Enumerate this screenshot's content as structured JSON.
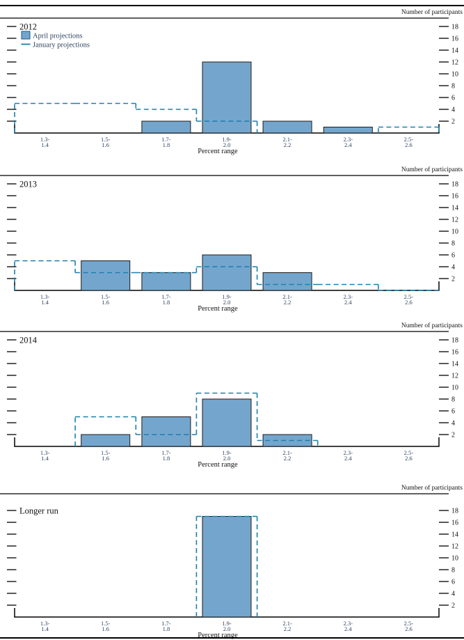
{
  "page": {
    "y_axis_title": "Number of participants",
    "x_axis_title": "Percent range"
  },
  "legend": {
    "april_label": "April projections",
    "january_label": "January projections"
  },
  "colors": {
    "bar_fill": "#74a6cd",
    "bar_stroke": "#1a1a1a",
    "dashed_line": "#1b7fad",
    "axis": "#000000",
    "tick_text": "#111111",
    "category_text": "#2e4160",
    "legend_text": "#2e4160",
    "year_text": "#111111"
  },
  "chart_data": {
    "type": "bar",
    "subtype": "histogram-with-dashed-step-overlay",
    "categories_display": [
      [
        "1.3-",
        "1.4"
      ],
      [
        "1.5-",
        "1.6"
      ],
      [
        "1.7-",
        "1.8"
      ],
      [
        "1.9-",
        "2.0"
      ],
      [
        "2.1-",
        "2.2"
      ],
      [
        "2.3-",
        "2.4"
      ],
      [
        "2.5-",
        "2.6"
      ]
    ],
    "xlabel": "Percent range",
    "ylabel": "Number of participants",
    "ylim": [
      0,
      19.4
    ],
    "yticks": [
      2,
      4,
      6,
      8,
      10,
      12,
      14,
      16,
      18
    ],
    "legend_position": "top-left-first-panel-only",
    "panels": [
      {
        "label": "2012",
        "series": [
          {
            "name": "April projections",
            "style": "bar",
            "values": [
              0,
              0,
              2,
              12,
              2,
              1,
              0
            ]
          },
          {
            "name": "January projections",
            "style": "dashed-step",
            "values": [
              5,
              5,
              4,
              2,
              0,
              0,
              1
            ],
            "zero_segments_drawn": []
          }
        ]
      },
      {
        "label": "2013",
        "series": [
          {
            "name": "April projections",
            "style": "bar",
            "values": [
              0,
              5,
              3,
              6,
              3,
              0,
              0
            ]
          },
          {
            "name": "January projections",
            "style": "dashed-step",
            "values": [
              5,
              3,
              3,
              4,
              1,
              1,
              0
            ],
            "zero_segments_drawn": [
              6
            ]
          }
        ]
      },
      {
        "label": "2014",
        "series": [
          {
            "name": "April projections",
            "style": "bar",
            "values": [
              0,
              2,
              5,
              8,
              2,
              0,
              0
            ]
          },
          {
            "name": "January projections",
            "style": "dashed-step",
            "values": [
              0,
              5,
              2,
              9,
              1,
              0,
              0
            ],
            "zero_segments_drawn": []
          }
        ]
      },
      {
        "label": "Longer run",
        "series": [
          {
            "name": "April projections",
            "style": "bar",
            "values": [
              0,
              0,
              0,
              17,
              0,
              0,
              0
            ]
          },
          {
            "name": "January projections",
            "style": "dashed-step",
            "values": [
              0,
              0,
              0,
              17,
              0,
              0,
              0
            ],
            "zero_segments_drawn": []
          }
        ]
      }
    ]
  }
}
